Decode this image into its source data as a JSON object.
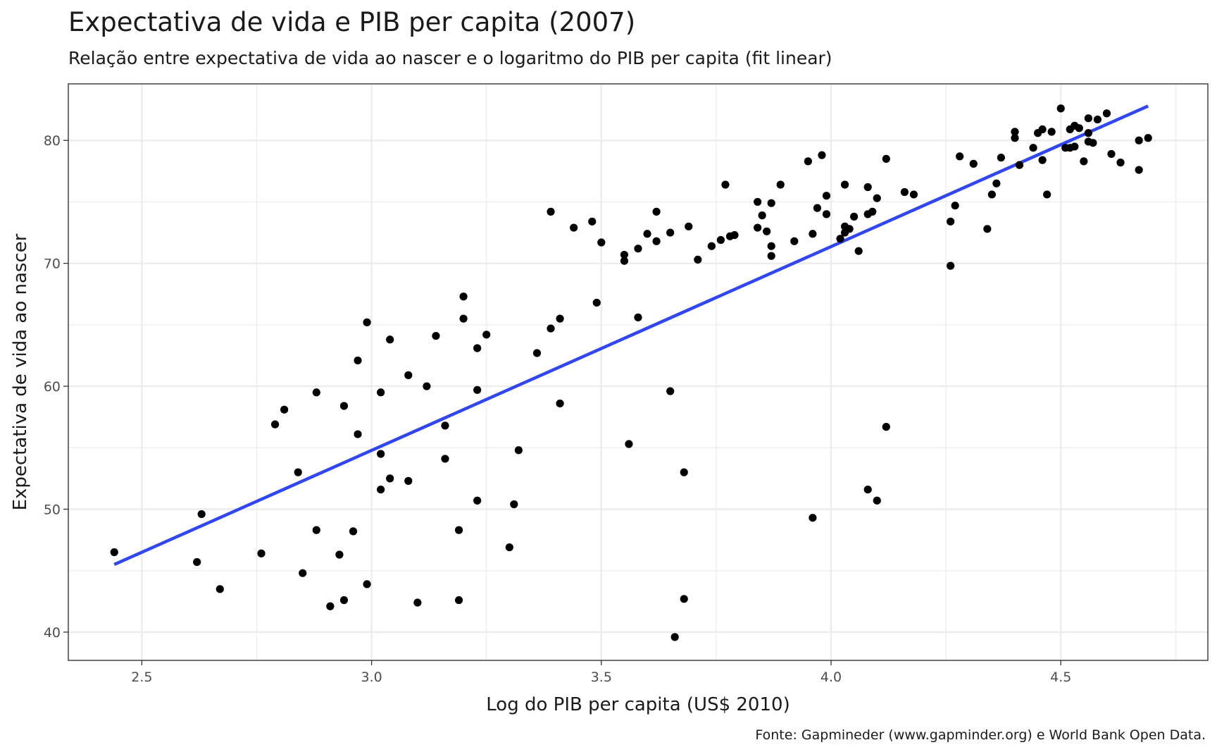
{
  "chart_data": {
    "type": "scatter",
    "title": "Expectativa de vida e PIB per capita (2007)",
    "subtitle": "Relação entre expectativa de vida ao nascer e o logaritmo do PIB per capita (fit linear)",
    "xlabel": "Log do PIB per capita (US$ 2010)",
    "ylabel": "Expectativa de vida ao nascer",
    "caption": "Fonte: Gapmineder (www.gapminder.org) e World Bank Open Data.",
    "xlim": [
      2.34,
      4.82
    ],
    "ylim": [
      37.7,
      84.6
    ],
    "x_ticks": [
      2.5,
      3.0,
      3.5,
      4.0,
      4.5
    ],
    "x_tick_labels": [
      "2.5",
      "3.0",
      "3.5",
      "4.0",
      "4.5"
    ],
    "y_ticks": [
      40,
      50,
      60,
      70,
      80
    ],
    "y_tick_labels": [
      "40",
      "50",
      "60",
      "70",
      "80"
    ],
    "grid": true,
    "colors": {
      "points": "#000000",
      "fit": "#3046f5",
      "grid": "#ebebeb",
      "border": "#333333"
    },
    "fit_line": {
      "x": [
        2.44,
        4.69
      ],
      "y": [
        45.5,
        82.8
      ]
    },
    "points": [
      {
        "x": 2.44,
        "y": 46.5
      },
      {
        "x": 2.62,
        "y": 45.7
      },
      {
        "x": 2.63,
        "y": 49.6
      },
      {
        "x": 2.67,
        "y": 43.5
      },
      {
        "x": 2.76,
        "y": 46.4
      },
      {
        "x": 2.79,
        "y": 56.9
      },
      {
        "x": 2.81,
        "y": 58.1
      },
      {
        "x": 2.84,
        "y": 53.0
      },
      {
        "x": 2.85,
        "y": 44.8
      },
      {
        "x": 2.88,
        "y": 59.5
      },
      {
        "x": 2.88,
        "y": 48.3
      },
      {
        "x": 2.91,
        "y": 42.1
      },
      {
        "x": 2.93,
        "y": 46.3
      },
      {
        "x": 2.94,
        "y": 58.4
      },
      {
        "x": 2.94,
        "y": 42.6
      },
      {
        "x": 2.96,
        "y": 48.2
      },
      {
        "x": 2.97,
        "y": 62.1
      },
      {
        "x": 2.97,
        "y": 56.1
      },
      {
        "x": 2.99,
        "y": 65.2
      },
      {
        "x": 2.99,
        "y": 43.9
      },
      {
        "x": 3.02,
        "y": 59.5
      },
      {
        "x": 3.02,
        "y": 54.5
      },
      {
        "x": 3.02,
        "y": 51.6
      },
      {
        "x": 3.04,
        "y": 63.8
      },
      {
        "x": 3.04,
        "y": 52.5
      },
      {
        "x": 3.08,
        "y": 60.9
      },
      {
        "x": 3.08,
        "y": 52.3
      },
      {
        "x": 3.1,
        "y": 42.4
      },
      {
        "x": 3.12,
        "y": 60.0
      },
      {
        "x": 3.14,
        "y": 64.1
      },
      {
        "x": 3.16,
        "y": 56.8
      },
      {
        "x": 3.16,
        "y": 54.1
      },
      {
        "x": 3.19,
        "y": 48.3
      },
      {
        "x": 3.19,
        "y": 42.6
      },
      {
        "x": 3.2,
        "y": 67.3
      },
      {
        "x": 3.2,
        "y": 65.5
      },
      {
        "x": 3.23,
        "y": 63.1
      },
      {
        "x": 3.23,
        "y": 59.7
      },
      {
        "x": 3.23,
        "y": 50.7
      },
      {
        "x": 3.25,
        "y": 64.2
      },
      {
        "x": 3.3,
        "y": 46.9
      },
      {
        "x": 3.31,
        "y": 50.4
      },
      {
        "x": 3.32,
        "y": 54.8
      },
      {
        "x": 3.36,
        "y": 62.7
      },
      {
        "x": 3.39,
        "y": 74.2
      },
      {
        "x": 3.39,
        "y": 64.7
      },
      {
        "x": 3.41,
        "y": 65.5
      },
      {
        "x": 3.41,
        "y": 58.6
      },
      {
        "x": 3.44,
        "y": 72.9
      },
      {
        "x": 3.48,
        "y": 73.4
      },
      {
        "x": 3.49,
        "y": 66.8
      },
      {
        "x": 3.5,
        "y": 71.7
      },
      {
        "x": 3.55,
        "y": 70.7
      },
      {
        "x": 3.55,
        "y": 70.2
      },
      {
        "x": 3.56,
        "y": 55.3
      },
      {
        "x": 3.58,
        "y": 71.2
      },
      {
        "x": 3.58,
        "y": 65.6
      },
      {
        "x": 3.6,
        "y": 72.4
      },
      {
        "x": 3.62,
        "y": 74.2
      },
      {
        "x": 3.62,
        "y": 71.8
      },
      {
        "x": 3.65,
        "y": 72.5
      },
      {
        "x": 3.65,
        "y": 59.6
      },
      {
        "x": 3.66,
        "y": 39.6
      },
      {
        "x": 3.68,
        "y": 53.0
      },
      {
        "x": 3.68,
        "y": 42.7
      },
      {
        "x": 3.69,
        "y": 73.0
      },
      {
        "x": 3.71,
        "y": 70.3
      },
      {
        "x": 3.74,
        "y": 71.4
      },
      {
        "x": 3.76,
        "y": 71.9
      },
      {
        "x": 3.77,
        "y": 76.4
      },
      {
        "x": 3.78,
        "y": 72.2
      },
      {
        "x": 3.79,
        "y": 72.3
      },
      {
        "x": 3.84,
        "y": 75.0
      },
      {
        "x": 3.84,
        "y": 72.9
      },
      {
        "x": 3.85,
        "y": 73.9
      },
      {
        "x": 3.86,
        "y": 72.6
      },
      {
        "x": 3.87,
        "y": 74.9
      },
      {
        "x": 3.87,
        "y": 71.4
      },
      {
        "x": 3.87,
        "y": 70.6
      },
      {
        "x": 3.89,
        "y": 76.4
      },
      {
        "x": 3.92,
        "y": 71.8
      },
      {
        "x": 3.95,
        "y": 78.3
      },
      {
        "x": 3.96,
        "y": 72.4
      },
      {
        "x": 3.96,
        "y": 49.3
      },
      {
        "x": 3.97,
        "y": 74.5
      },
      {
        "x": 3.98,
        "y": 78.8
      },
      {
        "x": 3.99,
        "y": 75.5
      },
      {
        "x": 3.99,
        "y": 74.0
      },
      {
        "x": 4.02,
        "y": 72.0
      },
      {
        "x": 4.03,
        "y": 76.4
      },
      {
        "x": 4.03,
        "y": 73.0
      },
      {
        "x": 4.03,
        "y": 72.5
      },
      {
        "x": 4.04,
        "y": 72.8
      },
      {
        "x": 4.05,
        "y": 73.8
      },
      {
        "x": 4.06,
        "y": 71.0
      },
      {
        "x": 4.08,
        "y": 76.2
      },
      {
        "x": 4.08,
        "y": 74.0
      },
      {
        "x": 4.08,
        "y": 51.6
      },
      {
        "x": 4.09,
        "y": 74.2
      },
      {
        "x": 4.1,
        "y": 75.3
      },
      {
        "x": 4.1,
        "y": 50.7
      },
      {
        "x": 4.12,
        "y": 78.5
      },
      {
        "x": 4.12,
        "y": 56.7
      },
      {
        "x": 4.16,
        "y": 75.8
      },
      {
        "x": 4.18,
        "y": 75.6
      },
      {
        "x": 4.26,
        "y": 73.4
      },
      {
        "x": 4.26,
        "y": 69.8
      },
      {
        "x": 4.27,
        "y": 74.7
      },
      {
        "x": 4.28,
        "y": 78.7
      },
      {
        "x": 4.31,
        "y": 78.1
      },
      {
        "x": 4.34,
        "y": 72.8
      },
      {
        "x": 4.35,
        "y": 75.6
      },
      {
        "x": 4.36,
        "y": 76.5
      },
      {
        "x": 4.37,
        "y": 78.6
      },
      {
        "x": 4.4,
        "y": 80.2
      },
      {
        "x": 4.4,
        "y": 80.7
      },
      {
        "x": 4.41,
        "y": 78.0
      },
      {
        "x": 4.44,
        "y": 79.4
      },
      {
        "x": 4.45,
        "y": 80.6
      },
      {
        "x": 4.46,
        "y": 80.9
      },
      {
        "x": 4.46,
        "y": 78.4
      },
      {
        "x": 4.47,
        "y": 75.6
      },
      {
        "x": 4.48,
        "y": 80.7
      },
      {
        "x": 4.5,
        "y": 82.6
      },
      {
        "x": 4.51,
        "y": 79.4
      },
      {
        "x": 4.52,
        "y": 79.4
      },
      {
        "x": 4.52,
        "y": 80.9
      },
      {
        "x": 4.53,
        "y": 79.5
      },
      {
        "x": 4.53,
        "y": 81.2
      },
      {
        "x": 4.54,
        "y": 81.0
      },
      {
        "x": 4.55,
        "y": 78.3
      },
      {
        "x": 4.56,
        "y": 81.8
      },
      {
        "x": 4.56,
        "y": 79.9
      },
      {
        "x": 4.56,
        "y": 80.6
      },
      {
        "x": 4.57,
        "y": 79.8
      },
      {
        "x": 4.58,
        "y": 81.7
      },
      {
        "x": 4.6,
        "y": 82.2
      },
      {
        "x": 4.61,
        "y": 78.9
      },
      {
        "x": 4.63,
        "y": 78.2
      },
      {
        "x": 4.67,
        "y": 80.0
      },
      {
        "x": 4.67,
        "y": 77.6
      },
      {
        "x": 4.69,
        "y": 80.2
      }
    ]
  }
}
